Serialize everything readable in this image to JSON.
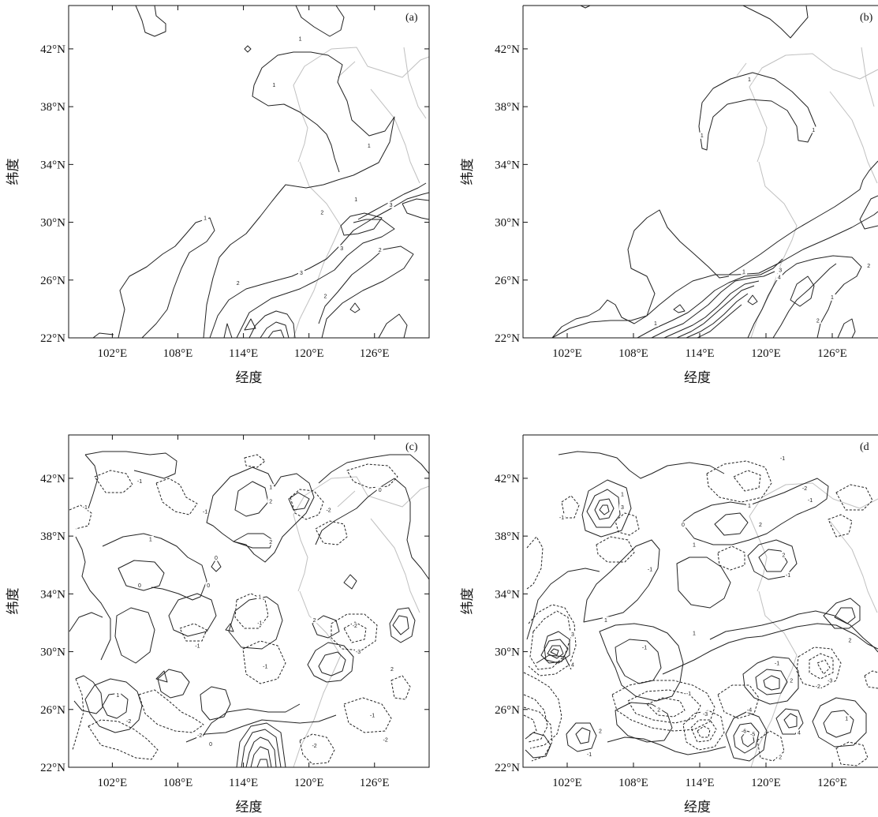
{
  "chart_data": [
    {
      "type": "contour",
      "panel_label": "(a)",
      "xlabel": "经度",
      "ylabel": "纬度",
      "xlim": [
        98,
        131
      ],
      "ylim": [
        22,
        45
      ],
      "x_ticks": [
        102,
        108,
        114,
        120,
        126
      ],
      "x_tick_labels": [
        "102°E",
        "108°E",
        "114°E",
        "120°E",
        "126°E"
      ],
      "y_ticks": [
        22,
        26,
        30,
        34,
        38,
        42
      ],
      "y_tick_labels": [
        "22°N",
        "26°N",
        "30°N",
        "34°N",
        "38°N",
        "42°N"
      ],
      "contour_levels": [
        1,
        2,
        3
      ],
      "contour_labels": [
        {
          "text": "1",
          "lon": 119.2,
          "lat": 42.7
        },
        {
          "text": "1",
          "lon": 116.8,
          "lat": 39.5
        },
        {
          "text": "1",
          "lon": 125.5,
          "lat": 35.3
        },
        {
          "text": "1",
          "lon": 124.3,
          "lat": 31.6
        },
        {
          "text": "1",
          "lon": 110.5,
          "lat": 30.3
        },
        {
          "text": "2",
          "lon": 121.2,
          "lat": 30.7
        },
        {
          "text": "3",
          "lon": 127.5,
          "lat": 31.2
        },
        {
          "text": "3",
          "lon": 123.0,
          "lat": 28.2
        },
        {
          "text": "2",
          "lon": 126.5,
          "lat": 28.1
        },
        {
          "text": "2",
          "lon": 113.5,
          "lat": 25.8
        },
        {
          "text": "3",
          "lon": 119.3,
          "lat": 26.5
        },
        {
          "text": "2",
          "lon": 121.5,
          "lat": 24.9
        }
      ]
    },
    {
      "type": "contour",
      "panel_label": "(b)",
      "xlabel": "经度",
      "ylabel": "纬度",
      "xlim": [
        98,
        131
      ],
      "ylim": [
        22,
        45
      ],
      "x_ticks": [
        102,
        108,
        114,
        120,
        126
      ],
      "x_tick_labels": [
        "102°E",
        "108°E",
        "114°E",
        "120°E",
        "126°E"
      ],
      "y_ticks": [
        22,
        26,
        30,
        34,
        38,
        42
      ],
      "y_tick_labels": [
        "22°N",
        "26°N",
        "30°N",
        "34°N",
        "38°N",
        "42°N"
      ],
      "contour_levels": [
        1,
        2,
        3,
        4
      ],
      "contour_labels": [
        {
          "text": "1",
          "lon": 118.5,
          "lat": 39.9
        },
        {
          "text": "1",
          "lon": 114.2,
          "lat": 36.0
        },
        {
          "text": "1",
          "lon": 124.3,
          "lat": 36.4
        },
        {
          "text": "3",
          "lon": 130.3,
          "lat": 30.9
        },
        {
          "text": "1",
          "lon": 118.0,
          "lat": 26.6
        },
        {
          "text": "3",
          "lon": 121.3,
          "lat": 26.7
        },
        {
          "text": "4",
          "lon": 121.2,
          "lat": 26.2
        },
        {
          "text": "2",
          "lon": 129.3,
          "lat": 27.0
        },
        {
          "text": "1",
          "lon": 126.0,
          "lat": 24.8
        },
        {
          "text": "2",
          "lon": 124.7,
          "lat": 23.2
        },
        {
          "text": "1",
          "lon": 110.0,
          "lat": 23.0
        }
      ]
    },
    {
      "type": "contour",
      "panel_label": "(c)",
      "xlabel": "经度",
      "ylabel": "纬度",
      "xlim": [
        98,
        131
      ],
      "ylim": [
        22,
        45
      ],
      "x_ticks": [
        102,
        108,
        114,
        120,
        126
      ],
      "x_tick_labels": [
        "102°E",
        "108°E",
        "114°E",
        "120°E",
        "126°E"
      ],
      "y_ticks": [
        22,
        26,
        30,
        34,
        38,
        42
      ],
      "y_tick_labels": [
        "22°N",
        "26°N",
        "30°N",
        "34°N",
        "38°N",
        "42°N"
      ],
      "contour_levels": [
        -3,
        -2,
        -1,
        0,
        1,
        2
      ],
      "contour_labels": [
        {
          "text": "-1",
          "lon": 104.5,
          "lat": 41.8
        },
        {
          "text": "-1",
          "lon": 99.5,
          "lat": 40.0
        },
        {
          "text": "-1",
          "lon": 110.5,
          "lat": 39.7
        },
        {
          "text": "1",
          "lon": 105.5,
          "lat": 37.8
        },
        {
          "text": "0",
          "lon": 111.5,
          "lat": 36.5
        },
        {
          "text": "1",
          "lon": 116.5,
          "lat": 41.4
        },
        {
          "text": "2",
          "lon": 116.5,
          "lat": 40.4
        },
        {
          "text": "2",
          "lon": 116.5,
          "lat": 37.6
        },
        {
          "text": "-2",
          "lon": 121.8,
          "lat": 39.8
        },
        {
          "text": "0",
          "lon": 126.5,
          "lat": 41.2
        },
        {
          "text": "0",
          "lon": 104.5,
          "lat": 34.6
        },
        {
          "text": "0",
          "lon": 110.8,
          "lat": 34.6
        },
        {
          "text": "1",
          "lon": 115.5,
          "lat": 33.8
        },
        {
          "text": "-1",
          "lon": 115.5,
          "lat": 32.0
        },
        {
          "text": "2",
          "lon": 120.5,
          "lat": 32.2
        },
        {
          "text": "-2",
          "lon": 124.2,
          "lat": 31.8
        },
        {
          "text": "-3",
          "lon": 124.5,
          "lat": 30.0
        },
        {
          "text": "2",
          "lon": 127.6,
          "lat": 28.8
        },
        {
          "text": "-1",
          "lon": 109.8,
          "lat": 30.4
        },
        {
          "text": "-1",
          "lon": 116.0,
          "lat": 29.0
        },
        {
          "text": "1",
          "lon": 102.5,
          "lat": 27.0
        },
        {
          "text": "-2",
          "lon": 110.0,
          "lat": 24.2
        },
        {
          "text": "-2",
          "lon": 103.5,
          "lat": 25.2
        },
        {
          "text": "0",
          "lon": 111.0,
          "lat": 23.6
        },
        {
          "text": "-1",
          "lon": 125.8,
          "lat": 25.6
        },
        {
          "text": "-2",
          "lon": 127.0,
          "lat": 23.9
        },
        {
          "text": "-2",
          "lon": 120.5,
          "lat": 23.5
        }
      ]
    },
    {
      "type": "contour",
      "panel_label": "(d",
      "xlabel": "经度",
      "ylabel": "纬度",
      "xlim": [
        98,
        131
      ],
      "ylim": [
        22,
        45
      ],
      "x_ticks": [
        102,
        108,
        114,
        120,
        126
      ],
      "x_tick_labels": [
        "102°E",
        "108°E",
        "114°E",
        "120°E",
        "126°E"
      ],
      "y_ticks": [
        22,
        26,
        30,
        34,
        38,
        42
      ],
      "y_tick_labels": [
        "22°N",
        "26°N",
        "30°N",
        "34°N",
        "38°N",
        "42°N"
      ],
      "contour_levels": [
        -6,
        -5,
        -4,
        -3,
        -2,
        -1,
        0,
        1,
        2,
        3,
        4
      ],
      "contour_labels": [
        {
          "text": "-1",
          "lon": 121.5,
          "lat": 43.4
        },
        {
          "text": "-2",
          "lon": 123.5,
          "lat": 41.3
        },
        {
          "text": "-1",
          "lon": 124.0,
          "lat": 40.5
        },
        {
          "text": "1",
          "lon": 107.0,
          "lat": 40.9
        },
        {
          "text": "3",
          "lon": 107.0,
          "lat": 40.0
        },
        {
          "text": "-1",
          "lon": 101.5,
          "lat": 39.3
        },
        {
          "text": "1",
          "lon": 118.5,
          "lat": 40.1
        },
        {
          "text": "2",
          "lon": 119.5,
          "lat": 38.8
        },
        {
          "text": "0",
          "lon": 112.5,
          "lat": 38.8
        },
        {
          "text": "1",
          "lon": 113.5,
          "lat": 37.4
        },
        {
          "text": "-1",
          "lon": 109.5,
          "lat": 35.7
        },
        {
          "text": "2",
          "lon": 121.6,
          "lat": 36.7
        },
        {
          "text": "-1",
          "lon": 122.0,
          "lat": 35.3
        },
        {
          "text": "1",
          "lon": 105.5,
          "lat": 32.2
        },
        {
          "text": "3",
          "lon": 102.5,
          "lat": 31.2
        },
        {
          "text": "4",
          "lon": 102.5,
          "lat": 29.1
        },
        {
          "text": "-1",
          "lon": 109.0,
          "lat": 30.3
        },
        {
          "text": "1",
          "lon": 113.5,
          "lat": 31.3
        },
        {
          "text": "2",
          "lon": 127.6,
          "lat": 30.8
        },
        {
          "text": "-1",
          "lon": 121.0,
          "lat": 29.2
        },
        {
          "text": "2",
          "lon": 122.3,
          "lat": 28.0
        },
        {
          "text": "-3",
          "lon": 125.8,
          "lat": 28.0
        },
        {
          "text": "-2",
          "lon": 124.7,
          "lat": 27.6
        },
        {
          "text": "-1",
          "lon": 113.0,
          "lat": 27.1
        },
        {
          "text": "-3",
          "lon": 114.5,
          "lat": 25.7
        },
        {
          "text": "2",
          "lon": 110.3,
          "lat": 26.0
        },
        {
          "text": "-4",
          "lon": 118.5,
          "lat": 26.0
        },
        {
          "text": "-6",
          "lon": 118.0,
          "lat": 24.5
        },
        {
          "text": "-5",
          "lon": 118.8,
          "lat": 24.3
        },
        {
          "text": "4",
          "lon": 123.0,
          "lat": 24.4
        },
        {
          "text": "2",
          "lon": 121.3,
          "lat": 22.7
        },
        {
          "text": "1",
          "lon": 127.3,
          "lat": 25.4
        },
        {
          "text": "-1",
          "lon": 104.0,
          "lat": 22.9
        },
        {
          "text": "2",
          "lon": 105.0,
          "lat": 24.5
        }
      ]
    }
  ]
}
